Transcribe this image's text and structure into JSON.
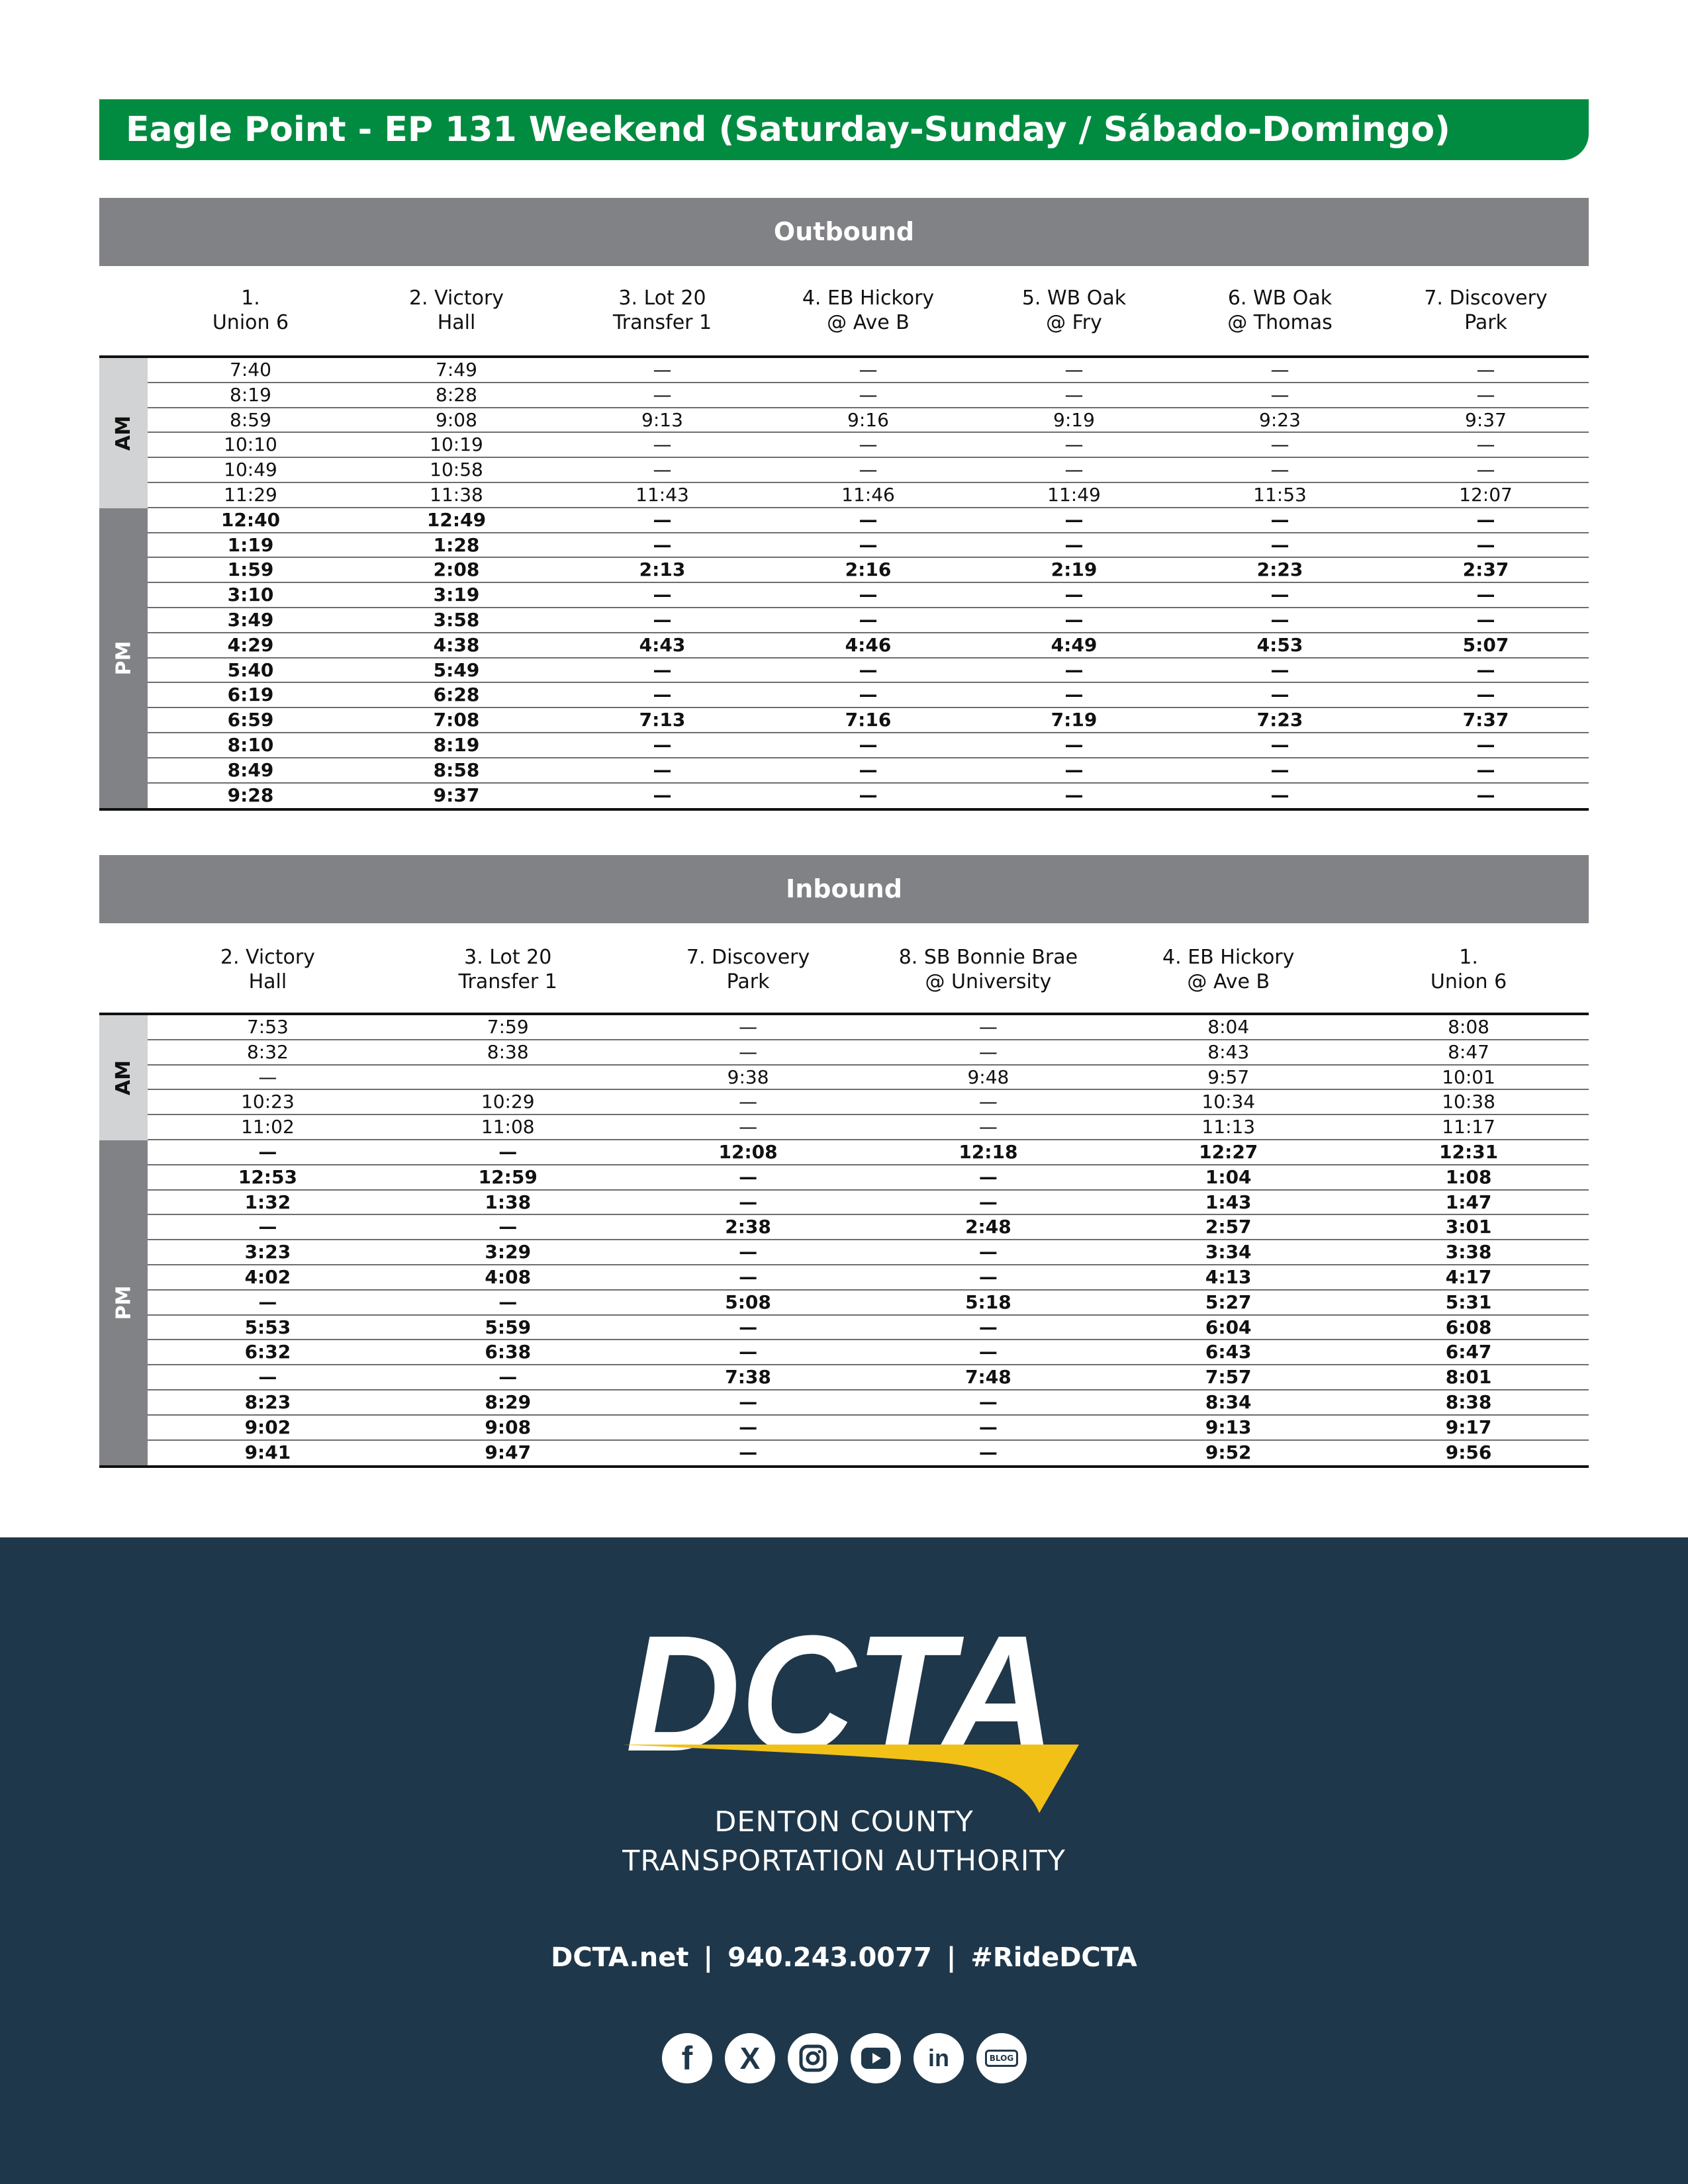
{
  "title": "Eagle Point - EP 131 Weekend (Saturday-Sunday / Sábado-Domingo)",
  "outbound": {
    "heading": "Outbound",
    "columns": [
      [
        "1.",
        "Union 6"
      ],
      [
        "2. Victory",
        "Hall"
      ],
      [
        "3. Lot 20",
        "Transfer 1"
      ],
      [
        "4. EB Hickory",
        "@ Ave B"
      ],
      [
        "5. WB Oak",
        "@ Fry"
      ],
      [
        "6. WB Oak",
        "@ Thomas"
      ],
      [
        "7. Discovery",
        "Park"
      ]
    ],
    "am_label": "AM",
    "pm_label": "PM",
    "am_rows": [
      [
        "7:40",
        "7:49",
        "—",
        "—",
        "—",
        "—",
        "—"
      ],
      [
        "8:19",
        "8:28",
        "—",
        "—",
        "—",
        "—",
        "—"
      ],
      [
        "8:59",
        "9:08",
        "9:13",
        "9:16",
        "9:19",
        "9:23",
        "9:37"
      ],
      [
        "10:10",
        "10:19",
        "—",
        "—",
        "—",
        "—",
        "—"
      ],
      [
        "10:49",
        "10:58",
        "—",
        "—",
        "—",
        "—",
        "—"
      ],
      [
        "11:29",
        "11:38",
        "11:43",
        "11:46",
        "11:49",
        "11:53",
        "12:07"
      ]
    ],
    "pm_rows": [
      [
        "12:40",
        "12:49",
        "—",
        "—",
        "—",
        "—",
        "—"
      ],
      [
        "1:19",
        "1:28",
        "—",
        "—",
        "—",
        "—",
        "—"
      ],
      [
        "1:59",
        "2:08",
        "2:13",
        "2:16",
        "2:19",
        "2:23",
        "2:37"
      ],
      [
        "3:10",
        "3:19",
        "—",
        "—",
        "—",
        "—",
        "—"
      ],
      [
        "3:49",
        "3:58",
        "—",
        "—",
        "—",
        "—",
        "—"
      ],
      [
        "4:29",
        "4:38",
        "4:43",
        "4:46",
        "4:49",
        "4:53",
        "5:07"
      ],
      [
        "5:40",
        "5:49",
        "—",
        "—",
        "—",
        "—",
        "—"
      ],
      [
        "6:19",
        "6:28",
        "—",
        "—",
        "—",
        "—",
        "—"
      ],
      [
        "6:59",
        "7:08",
        "7:13",
        "7:16",
        "7:19",
        "7:23",
        "7:37"
      ],
      [
        "8:10",
        "8:19",
        "—",
        "—",
        "—",
        "—",
        "—"
      ],
      [
        "8:49",
        "8:58",
        "—",
        "—",
        "—",
        "—",
        "—"
      ],
      [
        "9:28",
        "9:37",
        "—",
        "—",
        "—",
        "—",
        "—"
      ]
    ]
  },
  "inbound": {
    "heading": "Inbound",
    "columns": [
      [
        "2. Victory",
        "Hall"
      ],
      [
        "3. Lot 20",
        "Transfer 1"
      ],
      [
        "7. Discovery",
        "Park"
      ],
      [
        "8. SB Bonnie Brae",
        "@ University"
      ],
      [
        "4. EB Hickory",
        "@ Ave B"
      ],
      [
        "1.",
        "Union 6"
      ]
    ],
    "am_label": "AM",
    "pm_label": "PM",
    "am_rows": [
      [
        "7:53",
        "7:59",
        "—",
        "—",
        "8:04",
        "8:08"
      ],
      [
        "8:32",
        "8:38",
        "—",
        "—",
        "8:43",
        "8:47"
      ],
      [
        "—",
        "",
        "9:38",
        "9:48",
        "9:57",
        "10:01"
      ],
      [
        "10:23",
        "10:29",
        "—",
        "—",
        "10:34",
        "10:38"
      ],
      [
        "11:02",
        "11:08",
        "—",
        "—",
        "11:13",
        "11:17"
      ]
    ],
    "pm_rows": [
      [
        "—",
        "—",
        "12:08",
        "12:18",
        "12:27",
        "12:31"
      ],
      [
        "12:53",
        "12:59",
        "—",
        "—",
        "1:04",
        "1:08"
      ],
      [
        "1:32",
        "1:38",
        "—",
        "—",
        "1:43",
        "1:47"
      ],
      [
        "—",
        "—",
        "2:38",
        "2:48",
        "2:57",
        "3:01"
      ],
      [
        "3:23",
        "3:29",
        "—",
        "—",
        "3:34",
        "3:38"
      ],
      [
        "4:02",
        "4:08",
        "—",
        "—",
        "4:13",
        "4:17"
      ],
      [
        "—",
        "—",
        "5:08",
        "5:18",
        "5:27",
        "5:31"
      ],
      [
        "5:53",
        "5:59",
        "—",
        "—",
        "6:04",
        "6:08"
      ],
      [
        "6:32",
        "6:38",
        "—",
        "—",
        "6:43",
        "6:47"
      ],
      [
        "—",
        "—",
        "7:38",
        "7:48",
        "7:57",
        "8:01"
      ],
      [
        "8:23",
        "8:29",
        "—",
        "—",
        "8:34",
        "8:38"
      ],
      [
        "9:02",
        "9:08",
        "—",
        "—",
        "9:13",
        "9:17"
      ],
      [
        "9:41",
        "9:47",
        "—",
        "—",
        "9:52",
        "9:56"
      ]
    ]
  },
  "footer": {
    "logo_text": "DCTA",
    "org_line1": "DENTON COUNTY",
    "org_line2": "TRANSPORTATION AUTHORITY",
    "website": "DCTA.net",
    "phone": "940.243.0077",
    "hashtag": "#RideDCTA",
    "separator": "|",
    "social_icons": [
      "facebook-icon",
      "x-icon",
      "instagram-icon",
      "youtube-icon",
      "linkedin-icon",
      "blog-icon"
    ],
    "blog_label": "BLOG",
    "colors": {
      "background": "#1f374a",
      "accent": "#f2c118",
      "title_bar": "#008b40",
      "section_grey": "#808285",
      "am_grey": "#d1d3d4"
    }
  }
}
